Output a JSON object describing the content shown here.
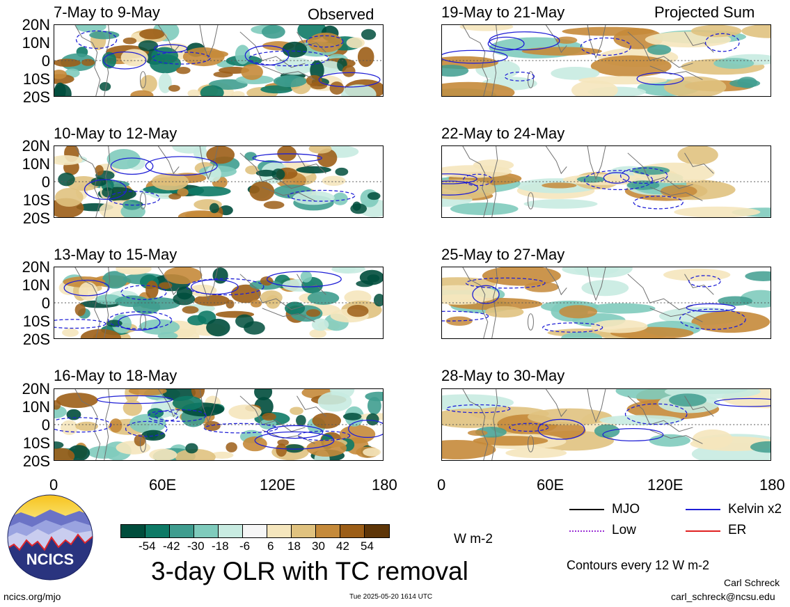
{
  "columns": {
    "left_label": "Observed",
    "right_label": "Projected Sum"
  },
  "panels": [
    {
      "title": "7-May to 9-May"
    },
    {
      "title": "19-May to 21-May"
    },
    {
      "title": "10-May to 12-May"
    },
    {
      "title": "22-May to 24-May"
    },
    {
      "title": "13-May to 15-May"
    },
    {
      "title": "25-May to 27-May"
    },
    {
      "title": "16-May to 18-May"
    },
    {
      "title": "28-May to 30-May"
    }
  ],
  "lat_ticks": [
    "20N",
    "10N",
    "0",
    "10S",
    "20S"
  ],
  "lon_ticks": [
    "0",
    "60E",
    "120E",
    "180"
  ],
  "colorbar": {
    "colors": [
      "#004d3c",
      "#0e7a66",
      "#3f9d8f",
      "#7fcbbc",
      "#c8ebe1",
      "#f6f6f6",
      "#f5e6bd",
      "#e0c27f",
      "#c58a3a",
      "#9c5e17",
      "#5e3608"
    ],
    "tick_labels": [
      "-54",
      "-42",
      "-30",
      "-18",
      "-6",
      "6",
      "18",
      "30",
      "42",
      "54"
    ],
    "units": "W m-2"
  },
  "main_title": "3-day OLR with TC removal",
  "legend": {
    "items": [
      {
        "label": "MJO",
        "color": "#000000"
      },
      {
        "label": "Kelvin x2",
        "color": "#1f1fd6"
      },
      {
        "label": "Low",
        "color": "#9a2fd4"
      },
      {
        "label": "ER",
        "color": "#e02020"
      }
    ],
    "contours_note": "Contours every 12 W m-2"
  },
  "logo_text": "NCICS",
  "footer": {
    "url": "ncics.org/mjo",
    "timestamp": "Tue 2025-05-20 1614 UTC",
    "author": "Carl Schreck",
    "email": "carl_schreck@ncsu.edu"
  }
}
